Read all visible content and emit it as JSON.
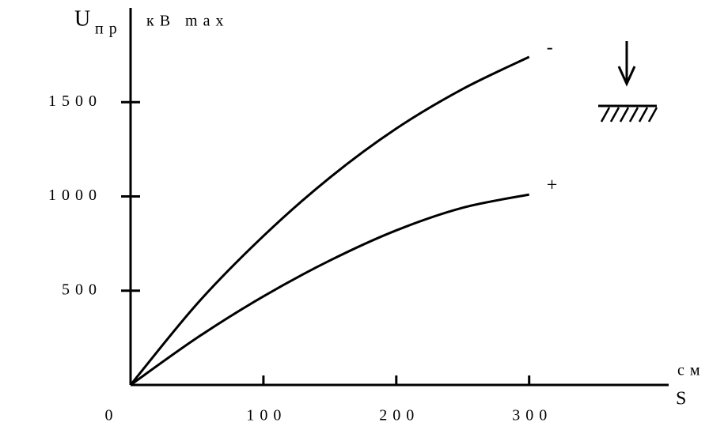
{
  "chart_data": {
    "type": "line",
    "y_label": "U",
    "y_label_sub": "пр",
    "y_unit": "кВ max",
    "x_label": "S",
    "x_unit": "см",
    "x": [
      0,
      50,
      100,
      150,
      200,
      250,
      300
    ],
    "series": [
      {
        "name": "-",
        "color": "#000000",
        "values": [
          0,
          430,
          790,
          1100,
          1360,
          1570,
          1740
        ]
      },
      {
        "name": "+",
        "color": "#000000",
        "values": [
          0,
          250,
          470,
          660,
          820,
          940,
          1010
        ]
      }
    ],
    "xlim": [
      0,
      405
    ],
    "xticks": [
      0,
      100,
      200,
      300
    ],
    "ylim": [
      0,
      2000
    ],
    "yticks": [
      500,
      1000,
      1500
    ],
    "grid": false
  }
}
